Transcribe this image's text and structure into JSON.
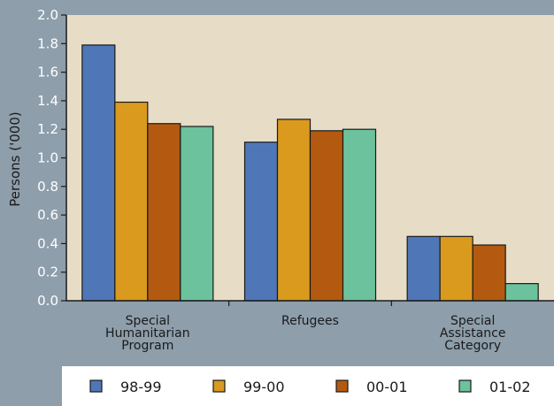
{
  "chart_data": {
    "type": "bar",
    "title": "",
    "xlabel": "",
    "ylabel": "Persons ('000)",
    "ylim": [
      0,
      2.0
    ],
    "yticks": [
      "0.0",
      "0.2",
      "0.4",
      "0.6",
      "0.8",
      "1.0",
      "1.2",
      "1.4",
      "1.6",
      "1.8",
      "2.0"
    ],
    "categories": [
      [
        "Special",
        "Humanitarian",
        "Program"
      ],
      [
        "Refugees"
      ],
      [
        "Special",
        "Assistance",
        "Category"
      ]
    ],
    "series": [
      {
        "name": "98-99",
        "color": "#4f77b8",
        "values": [
          1.79,
          1.11,
          0.45
        ]
      },
      {
        "name": "99-00",
        "color": "#d99a1e",
        "values": [
          1.39,
          1.27,
          0.45
        ]
      },
      {
        "name": "00-01",
        "color": "#b35a10",
        "values": [
          1.24,
          1.19,
          0.39
        ]
      },
      {
        "name": "01-02",
        "color": "#6cc29c",
        "values": [
          1.22,
          1.2,
          0.12
        ]
      }
    ],
    "grid": false,
    "legend_position": "bottom"
  },
  "colors": {
    "page_background": "#8e9eab",
    "plot_background": "#e7dcc6",
    "axis": "#1a1a1a"
  }
}
